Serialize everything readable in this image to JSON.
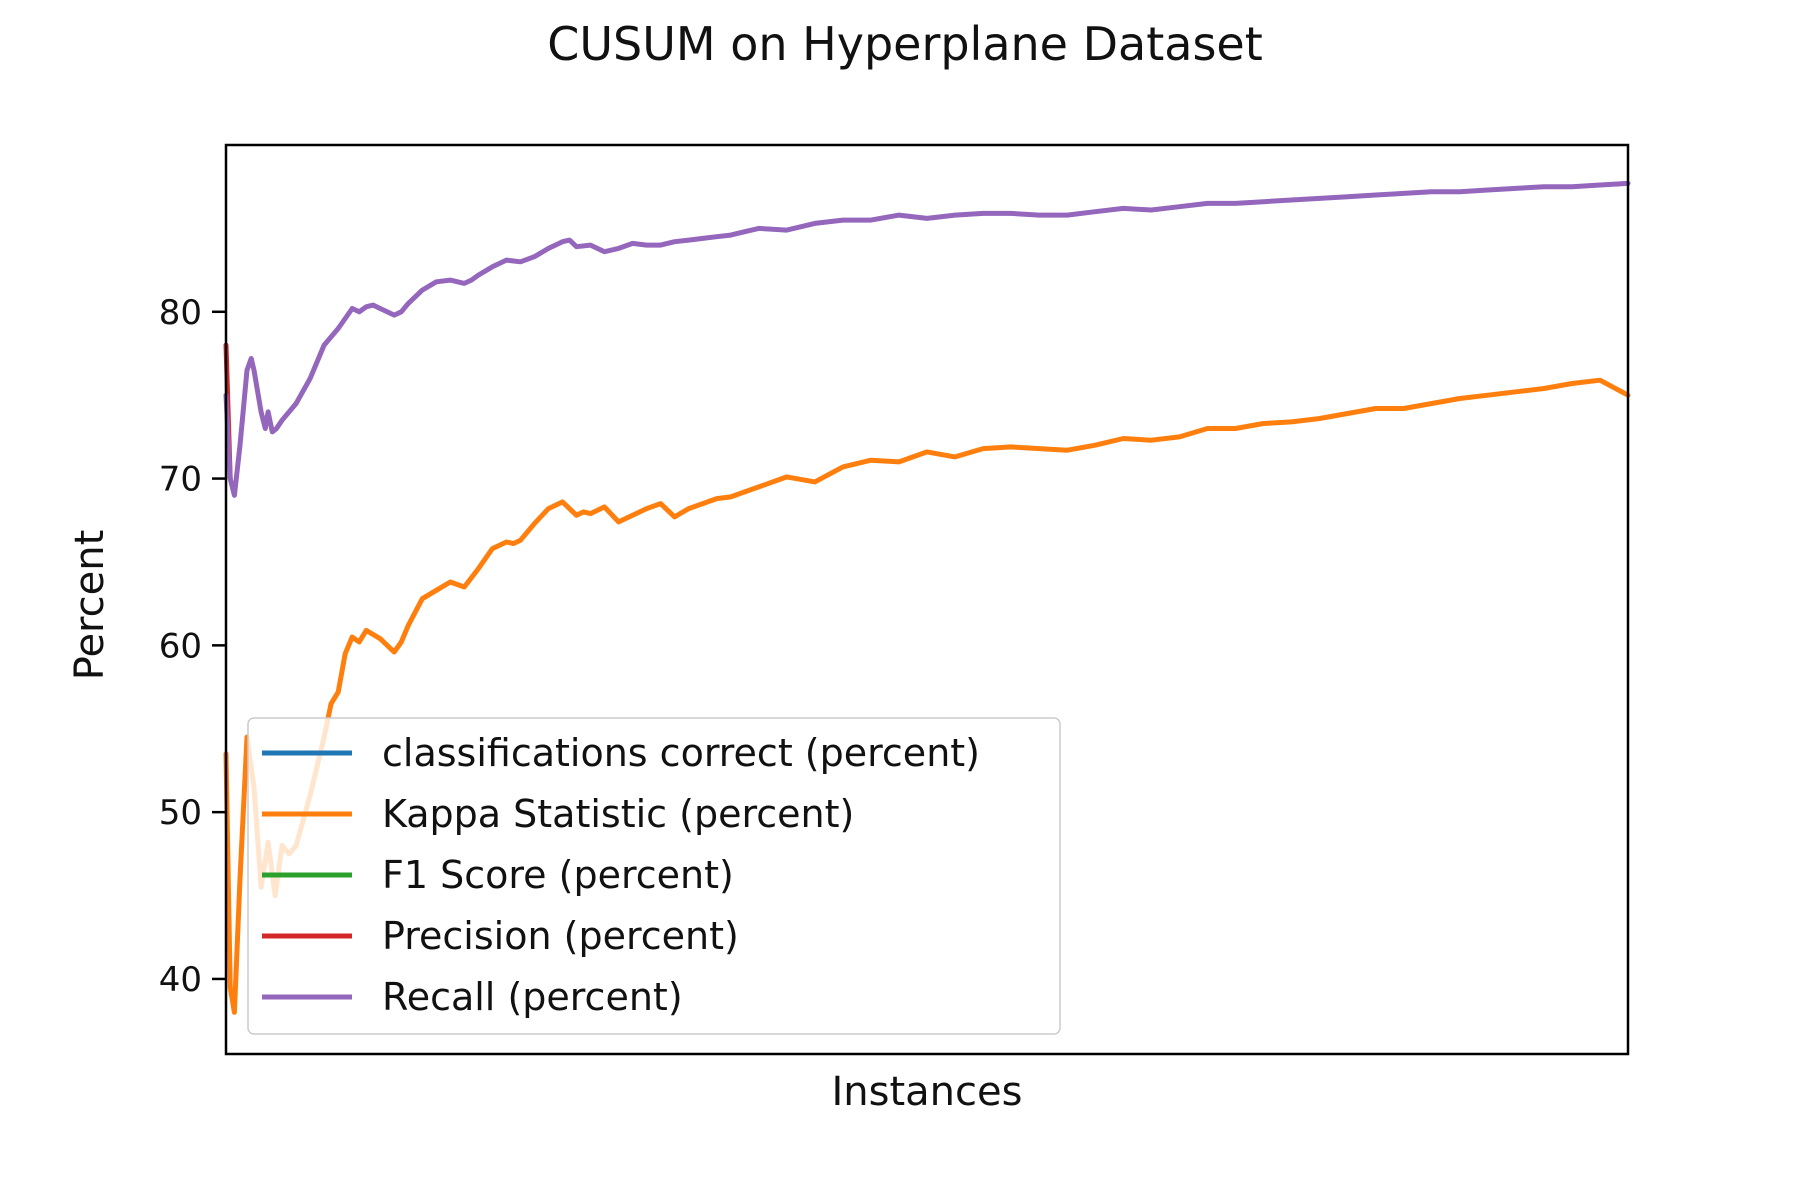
{
  "chart_data": {
    "type": "line",
    "title": "CUSUM on Hyperplane Dataset",
    "xlabel": "Instances",
    "ylabel": "Percent",
    "xlim": [
      0,
      100
    ],
    "ylim": [
      35.5,
      90
    ],
    "yticks": [
      40,
      50,
      60,
      70,
      80
    ],
    "grid": false,
    "legend_position": "lower-left",
    "series": [
      {
        "name": "classifications correct (percent)",
        "color": "#1f77b4",
        "x": [],
        "values": []
      },
      {
        "name": "Kappa Statistic (percent)",
        "color": "#ff7f0e",
        "x": [
          0,
          0.3,
          0.6,
          1.0,
          1.5,
          2.0,
          2.5,
          3.0,
          3.5,
          4.0,
          4.5,
          5.0,
          6.0,
          7.0,
          7.5,
          8.0,
          8.5,
          9.0,
          9.5,
          10.0,
          11.0,
          12.0,
          12.5,
          13.0,
          14.0,
          15.0,
          16.0,
          17.0,
          18.0,
          19.0,
          20.0,
          20.5,
          21.0,
          22.0,
          23.0,
          24.0,
          25.0,
          25.5,
          26.0,
          27.0,
          28.0,
          29.0,
          30.0,
          31.0,
          32.0,
          33.0,
          34.0,
          35.0,
          36.0,
          37.0,
          38.0,
          40.0,
          42.0,
          44.0,
          46.0,
          48.0,
          50.0,
          52.0,
          54.0,
          56.0,
          58.0,
          60.0,
          62.0,
          64.0,
          66.0,
          68.0,
          70.0,
          72.0,
          74.0,
          76.0,
          78.0,
          80.0,
          82.0,
          84.0,
          86.0,
          88.0,
          90.0,
          92.0,
          94.0,
          96.0,
          98.0,
          100.0
        ],
        "values": [
          53.5,
          39.5,
          38.0,
          46.0,
          54.5,
          51.5,
          45.5,
          48.2,
          45.0,
          48.0,
          47.5,
          48.0,
          51.0,
          54.5,
          56.5,
          57.2,
          59.5,
          60.5,
          60.2,
          60.9,
          60.4,
          59.6,
          60.2,
          61.2,
          62.8,
          63.3,
          63.8,
          63.5,
          64.6,
          65.8,
          66.2,
          66.1,
          66.3,
          67.3,
          68.2,
          68.6,
          67.8,
          68.0,
          67.9,
          68.3,
          67.4,
          67.8,
          68.2,
          68.5,
          67.7,
          68.2,
          68.5,
          68.8,
          68.9,
          69.2,
          69.5,
          70.1,
          69.8,
          70.7,
          71.1,
          71.0,
          71.6,
          71.3,
          71.8,
          71.9,
          71.8,
          71.7,
          72.0,
          72.4,
          72.3,
          72.5,
          73.0,
          73.0,
          73.3,
          73.4,
          73.6,
          73.9,
          74.2,
          74.2,
          74.5,
          74.8,
          75.0,
          75.2,
          75.4,
          75.7,
          75.9,
          75.0
        ]
      },
      {
        "name": "F1 Score (percent)",
        "color": "#2ca02c",
        "x": [],
        "values": []
      },
      {
        "name": "Precision (percent)",
        "color": "#d62728",
        "x": [
          0,
          0.15,
          0.3
        ],
        "values": [
          78.0,
          74.0,
          70.0
        ]
      },
      {
        "name": "Recall (percent)",
        "color": "#9467bd",
        "x": [
          0,
          0.3,
          0.6,
          1.0,
          1.5,
          1.8,
          2.0,
          2.5,
          2.8,
          3.0,
          3.3,
          3.6,
          4.0,
          4.5,
          5.0,
          6.0,
          7.0,
          8.0,
          9.0,
          9.5,
          10.0,
          10.5,
          11.0,
          12.0,
          12.5,
          13.0,
          14.0,
          15.0,
          16.0,
          17.0,
          17.5,
          18.0,
          19.0,
          20.0,
          21.0,
          22.0,
          23.0,
          24.0,
          24.5,
          25.0,
          26.0,
          27.0,
          28.0,
          29.0,
          30.0,
          31.0,
          32.0,
          33.0,
          34.0,
          35.0,
          36.0,
          37.0,
          38.0,
          40.0,
          42.0,
          44.0,
          46.0,
          48.0,
          50.0,
          52.0,
          54.0,
          56.0,
          58.0,
          60.0,
          62.0,
          64.0,
          66.0,
          68.0,
          70.0,
          72.0,
          74.0,
          76.0,
          78.0,
          80.0,
          82.0,
          84.0,
          86.0,
          88.0,
          90.0,
          92.0,
          94.0,
          96.0,
          98.0,
          100.0
        ],
        "values": [
          75.0,
          70.0,
          69.0,
          72.0,
          76.5,
          77.2,
          76.5,
          74.0,
          73.0,
          74.0,
          72.8,
          73.0,
          73.5,
          74.0,
          74.5,
          76.0,
          78.0,
          79.0,
          80.2,
          80.0,
          80.3,
          80.4,
          80.2,
          79.8,
          80.0,
          80.5,
          81.3,
          81.8,
          81.9,
          81.7,
          81.9,
          82.2,
          82.7,
          83.1,
          83.0,
          83.3,
          83.8,
          84.2,
          84.3,
          83.9,
          84.0,
          83.6,
          83.8,
          84.1,
          84.0,
          84.0,
          84.2,
          84.3,
          84.4,
          84.5,
          84.6,
          84.8,
          85.0,
          84.9,
          85.3,
          85.5,
          85.5,
          85.8,
          85.6,
          85.8,
          85.9,
          85.9,
          85.8,
          85.8,
          86.0,
          86.2,
          86.1,
          86.3,
          86.5,
          86.5,
          86.6,
          86.7,
          86.8,
          86.9,
          87.0,
          87.1,
          87.2,
          87.2,
          87.3,
          87.4,
          87.5,
          87.5,
          87.6,
          87.7
        ]
      }
    ]
  }
}
